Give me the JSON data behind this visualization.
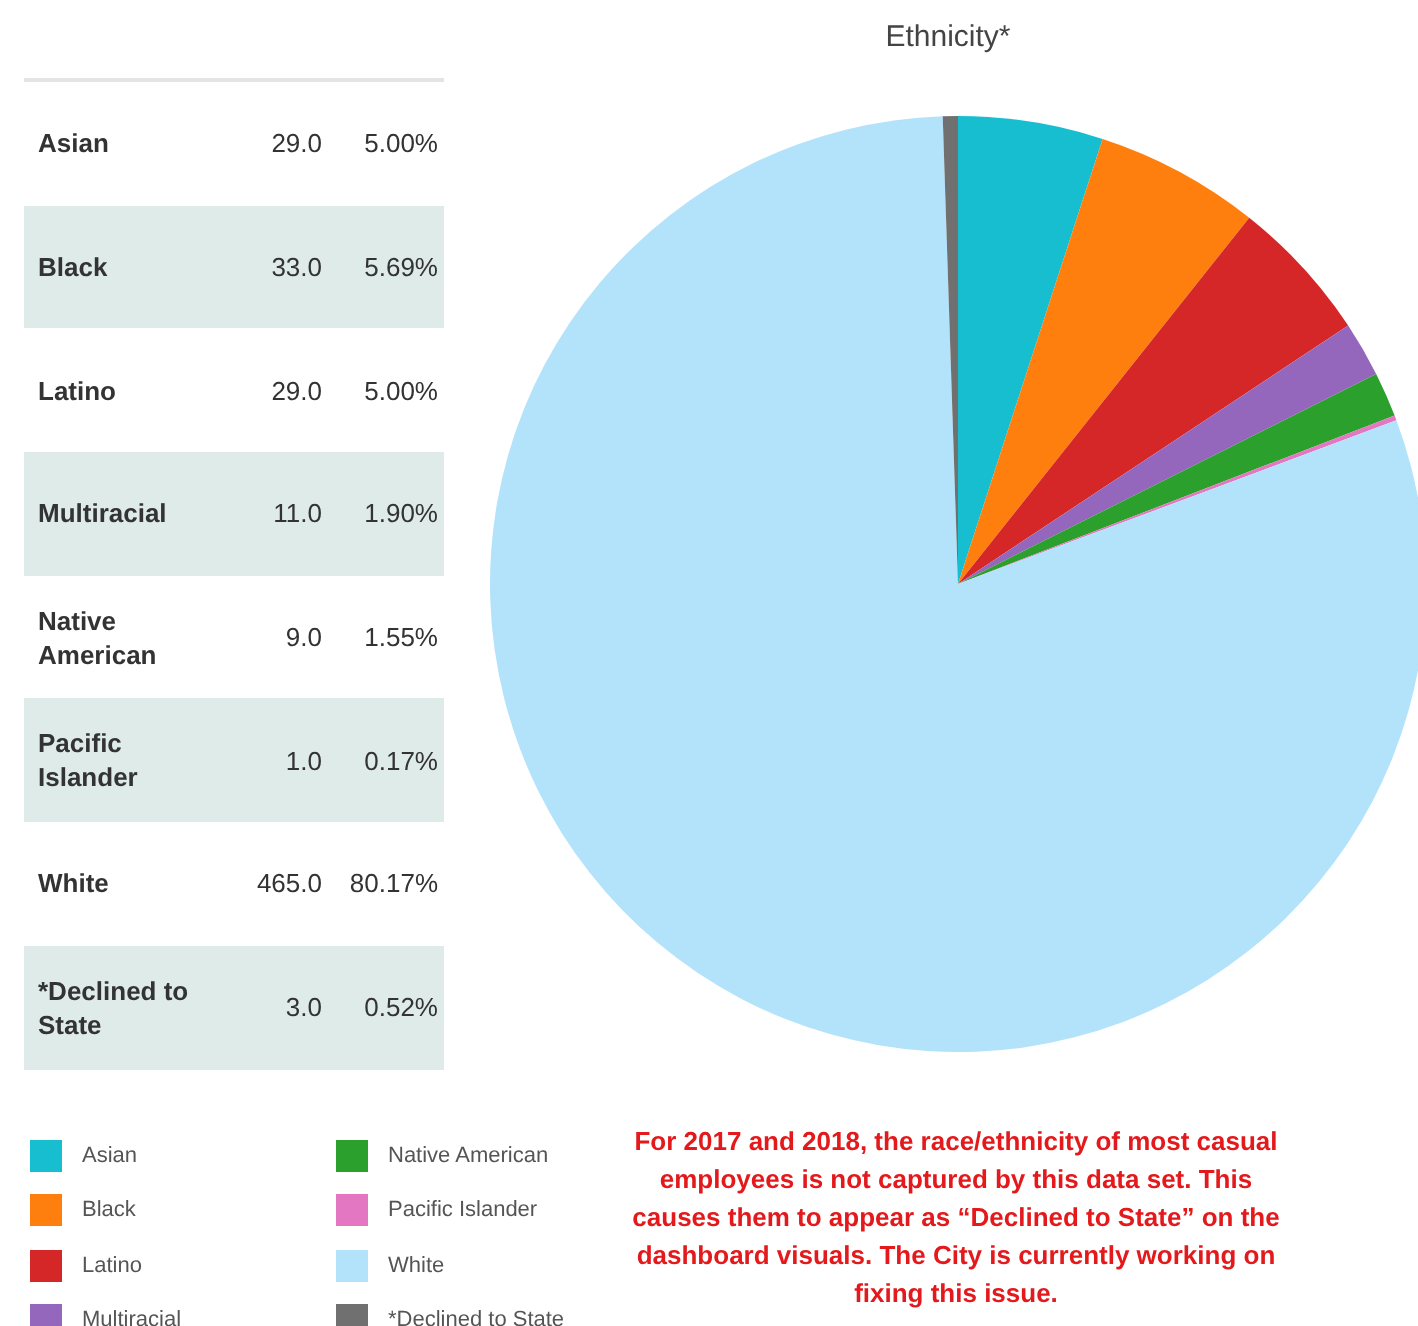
{
  "chart_data": {
    "type": "pie",
    "title": "Ethnicity*",
    "categories": [
      "Asian",
      "Black",
      "Latino",
      "Multiracial",
      "Native American",
      "Pacific Islander",
      "White",
      "*Declined to State"
    ],
    "values": [
      5.0,
      5.69,
      5.0,
      1.9,
      1.55,
      0.17,
      80.17,
      0.52
    ],
    "colors": [
      "#17becf",
      "#ff7f0e",
      "#d62728",
      "#9467bd",
      "#2ca02c",
      "#e377c2",
      "#b3e3fb",
      "#707070"
    ],
    "legend": "bottom left",
    "annotations": [
      {
        "text": "29.0",
        "x": "Asian"
      },
      {
        "text": "33.0",
        "x": "Black"
      },
      {
        "text": "29.0",
        "x": "Latino"
      },
      {
        "text": "11.0",
        "x": "Multiracial"
      },
      {
        "text": "9.0",
        "x": "Native American"
      },
      {
        "text": "1.0",
        "x": "Pacific Islander"
      },
      {
        "text": "465.0",
        "x": "White"
      },
      {
        "text": "3.0",
        "x": "*Declined to State"
      },
      {
        "text": "5.00%",
        "x": "Asian"
      },
      {
        "text": "5.69%",
        "x": "Black"
      },
      {
        "text": "5.00%",
        "x": "Latino"
      },
      {
        "text": "1.90%",
        "x": "Multiracial"
      },
      {
        "text": "1.55%",
        "x": "Native American"
      },
      {
        "text": "0.17%",
        "x": "Pacific Islander"
      },
      {
        "text": "80.17%",
        "x": "White"
      },
      {
        "text": "0.52%",
        "x": "*Declined to State"
      },
      "For 2017 and 2018, the race/ethnicity of most casual employees is not captured by this data set. This causes them to appear as “Declined to State” on the dashboard visuals. The City is currently working on fixing this issue."
    ]
  }
}
